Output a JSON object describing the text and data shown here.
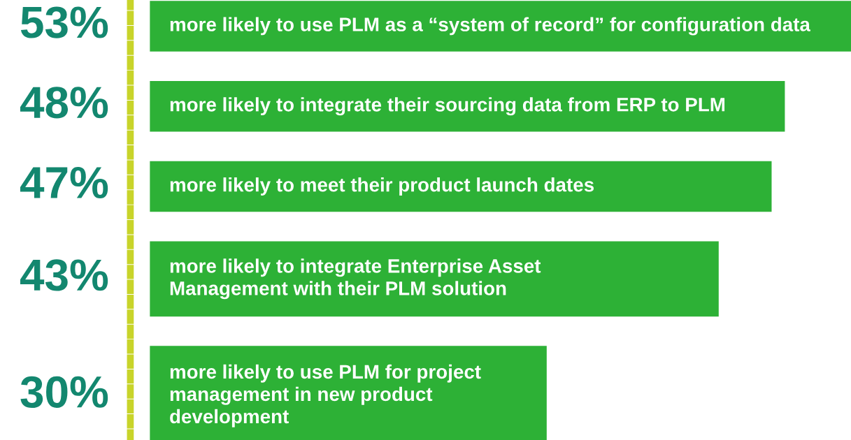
{
  "chart_data": {
    "type": "bar",
    "orientation": "horizontal",
    "color": "#2db136",
    "categories": [
      "more likely to use PLM as a “system of record” for configuration data",
      "more likely to integrate their sourcing data from ERP to PLM",
      "more likely to meet their product launch dates",
      "more likely to integrate Enterprise Asset\nManagement with their PLM solution",
      "more likely to use PLM for project\nmanagement in new product\ndevelopment"
    ],
    "values": [
      53,
      48,
      47,
      43,
      30
    ],
    "value_labels": [
      "53%",
      "48%",
      "47%",
      "43%",
      "30%"
    ]
  }
}
